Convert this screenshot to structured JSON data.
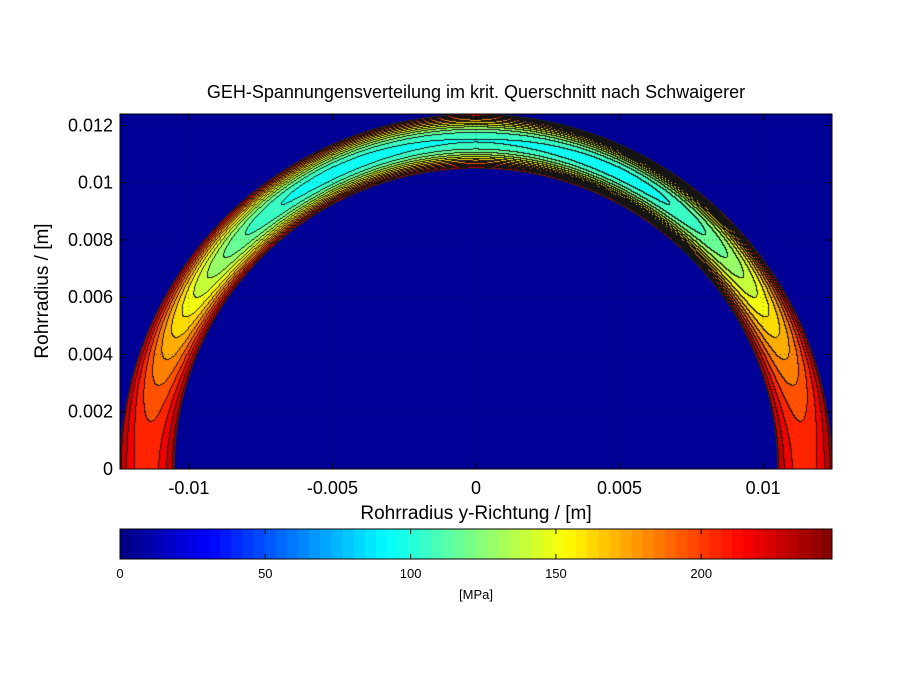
{
  "chart_data": {
    "type": "heatmap",
    "title": "GEH-Spannungensverteilung im krit. Querschnitt nach Schwaigerer",
    "xlabel": "Rohrradius y-Richtung / [m]",
    "ylabel": "Rohrradius / [m]",
    "xlim": [
      -0.0124,
      0.0124
    ],
    "ylim": [
      0,
      0.0124
    ],
    "xticks": [
      -0.01,
      -0.005,
      0,
      0.005,
      0.01
    ],
    "xtick_labels": [
      "-0.01",
      "-0.005",
      "0",
      "0.005",
      "0.01"
    ],
    "yticks": [
      0,
      0.002,
      0.004,
      0.006,
      0.008,
      0.01,
      0.012
    ],
    "ytick_labels": [
      "0",
      "0.002",
      "0.004",
      "0.006",
      "0.008",
      "0.01",
      "0.012"
    ],
    "grid": true,
    "ring": {
      "inner_radius": 0.0105,
      "outer_radius": 0.0124
    },
    "background_value": 0,
    "stress_levels": [
      0,
      50,
      100,
      150,
      200
    ],
    "colorbar": {
      "orientation": "horizontal",
      "range": [
        0,
        245
      ],
      "ticks": [
        0,
        50,
        100,
        150,
        200
      ],
      "tick_labels": [
        "0",
        "50",
        "100",
        "150",
        "200"
      ],
      "label": "[MPa]",
      "colormap": "jet"
    }
  }
}
